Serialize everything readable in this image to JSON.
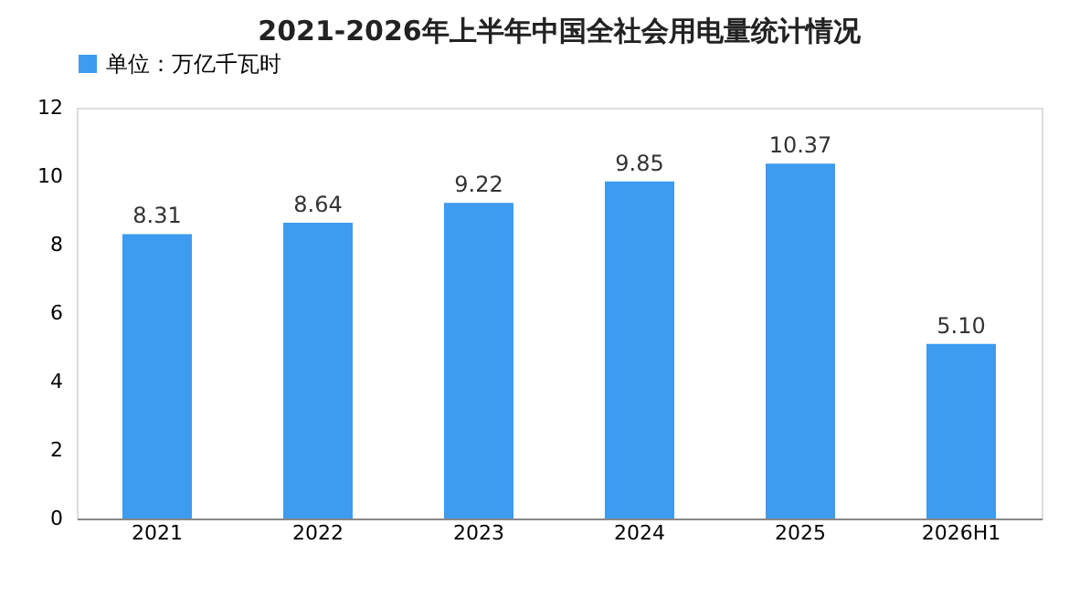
{
  "chart_data": {
    "type": "bar",
    "title": "2021-2026年上半年中国全社会用电量统计情况",
    "categories": [
      "2021",
      "2022",
      "2023",
      "2024",
      "2025",
      "2026H1"
    ],
    "series": [
      {
        "name": "单位：万亿千瓦时",
        "color": "#3d9bf0",
        "values": [
          8.31,
          8.64,
          9.22,
          9.85,
          10.37,
          5.1
        ],
        "value_labels": [
          "8.31",
          "8.64",
          "9.22",
          "9.85",
          "10.37",
          "5.10"
        ]
      }
    ],
    "ylim": [
      0,
      12
    ],
    "yticks": [
      0,
      2,
      4,
      6,
      8,
      10,
      12
    ],
    "grid": false,
    "legend": "top"
  }
}
